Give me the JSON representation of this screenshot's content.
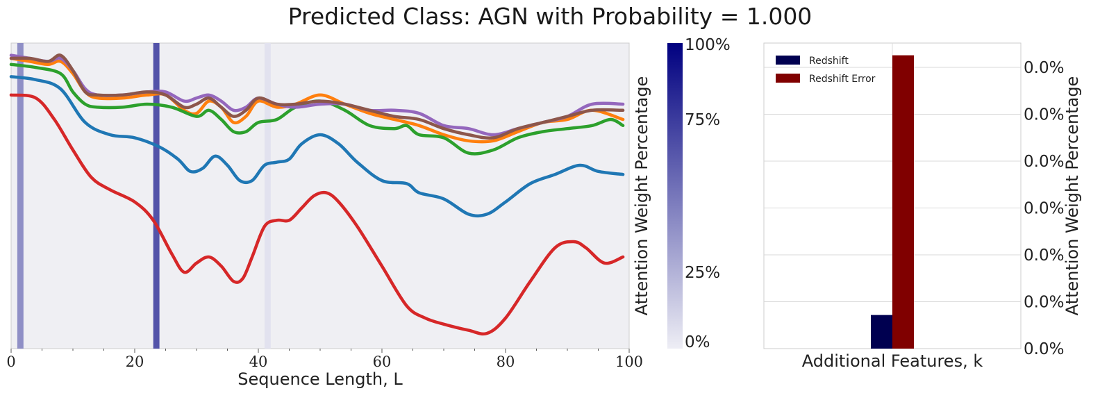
{
  "title": "Predicted Class: AGN with Probability = 1.000",
  "colorbar": {
    "label": "Attention Weight Percentage",
    "ticks": [
      "0%",
      "25%",
      "75%",
      "100%"
    ],
    "values": [
      0,
      25,
      75,
      100
    ],
    "colors": [
      "#eeeef5",
      "#000080"
    ]
  },
  "chart_data": [
    {
      "type": "line",
      "xlabel": "Sequence Length, L",
      "xlim": [
        0,
        100
      ],
      "x_ticks": [
        0,
        20,
        40,
        60,
        80,
        100
      ],
      "ylim": [
        0,
        1
      ],
      "background": "#efeff3",
      "attention_bands": [
        {
          "x": 1.5,
          "weight": 0.4
        },
        {
          "x": 23.5,
          "weight": 0.65
        },
        {
          "x": 41.5,
          "weight": 0.05
        }
      ],
      "series": [
        {
          "color": "#1f77b4",
          "x": [
            0,
            4,
            8,
            12,
            16,
            20,
            24,
            27,
            29,
            31,
            33,
            35,
            37,
            39,
            41,
            43,
            45,
            47,
            50,
            53,
            56,
            60,
            64,
            66,
            70,
            74,
            77,
            80,
            84,
            88,
            92,
            95,
            99
          ],
          "y": [
            0.89,
            0.88,
            0.85,
            0.74,
            0.7,
            0.69,
            0.66,
            0.62,
            0.58,
            0.59,
            0.63,
            0.6,
            0.55,
            0.55,
            0.6,
            0.61,
            0.62,
            0.67,
            0.7,
            0.67,
            0.61,
            0.55,
            0.54,
            0.51,
            0.49,
            0.44,
            0.44,
            0.48,
            0.54,
            0.57,
            0.6,
            0.58,
            0.57
          ]
        },
        {
          "color": "#ff7f0e",
          "x": [
            0,
            3,
            6,
            8,
            10,
            12,
            14,
            18,
            22,
            25,
            28,
            30,
            32,
            34,
            36,
            38,
            40,
            43,
            46,
            50,
            54,
            58,
            62,
            66,
            70,
            74,
            78,
            82,
            86,
            90,
            94,
            99
          ],
          "y": [
            0.95,
            0.94,
            0.93,
            0.94,
            0.9,
            0.84,
            0.82,
            0.82,
            0.83,
            0.83,
            0.78,
            0.77,
            0.81,
            0.79,
            0.74,
            0.76,
            0.81,
            0.79,
            0.8,
            0.83,
            0.8,
            0.77,
            0.75,
            0.73,
            0.7,
            0.68,
            0.68,
            0.71,
            0.74,
            0.75,
            0.78,
            0.75
          ]
        },
        {
          "color": "#2ca02c",
          "x": [
            0,
            4,
            8,
            10,
            12,
            14,
            18,
            22,
            26,
            30,
            32,
            34,
            36,
            38,
            40,
            43,
            46,
            50,
            54,
            58,
            62,
            64,
            66,
            70,
            74,
            78,
            82,
            86,
            90,
            94,
            97,
            99
          ],
          "y": [
            0.93,
            0.92,
            0.9,
            0.84,
            0.8,
            0.79,
            0.79,
            0.8,
            0.79,
            0.76,
            0.78,
            0.75,
            0.71,
            0.71,
            0.74,
            0.75,
            0.79,
            0.81,
            0.78,
            0.73,
            0.72,
            0.73,
            0.7,
            0.69,
            0.64,
            0.65,
            0.69,
            0.71,
            0.72,
            0.73,
            0.75,
            0.73
          ]
        },
        {
          "color": "#d62728",
          "x": [
            0,
            4,
            7,
            10,
            13,
            16,
            20,
            23,
            26,
            28,
            30,
            32,
            34,
            36,
            37.5,
            39,
            41,
            43,
            45,
            47,
            49,
            51,
            53,
            56,
            60,
            64,
            67,
            70,
            74,
            77,
            80,
            84,
            88,
            91,
            93,
            96,
            99
          ],
          "y": [
            0.83,
            0.82,
            0.75,
            0.65,
            0.56,
            0.52,
            0.48,
            0.42,
            0.31,
            0.25,
            0.28,
            0.3,
            0.27,
            0.22,
            0.23,
            0.3,
            0.4,
            0.42,
            0.42,
            0.46,
            0.5,
            0.51,
            0.48,
            0.4,
            0.27,
            0.14,
            0.1,
            0.08,
            0.06,
            0.05,
            0.1,
            0.22,
            0.33,
            0.35,
            0.33,
            0.28,
            0.3
          ]
        },
        {
          "color": "#9467bd",
          "x": [
            0,
            3,
            6,
            8,
            10,
            12,
            14,
            18,
            22,
            25,
            28,
            30,
            32,
            34,
            36,
            38,
            40,
            43,
            46,
            50,
            54,
            58,
            62,
            66,
            70,
            74,
            78,
            82,
            86,
            90,
            94,
            99
          ],
          "y": [
            0.96,
            0.95,
            0.94,
            0.95,
            0.91,
            0.85,
            0.83,
            0.83,
            0.84,
            0.84,
            0.81,
            0.82,
            0.83,
            0.81,
            0.78,
            0.79,
            0.82,
            0.8,
            0.79,
            0.8,
            0.8,
            0.78,
            0.78,
            0.77,
            0.73,
            0.72,
            0.7,
            0.72,
            0.74,
            0.76,
            0.8,
            0.8
          ]
        },
        {
          "color": "#8c564b",
          "x": [
            0,
            3,
            6,
            8,
            10,
            12,
            14,
            18,
            22,
            25,
            28,
            30,
            32,
            34,
            36,
            38,
            40,
            43,
            46,
            50,
            54,
            58,
            62,
            66,
            70,
            74,
            78,
            82,
            86,
            90,
            94,
            99
          ],
          "y": [
            0.95,
            0.95,
            0.94,
            0.96,
            0.91,
            0.84,
            0.83,
            0.83,
            0.84,
            0.83,
            0.79,
            0.8,
            0.82,
            0.79,
            0.76,
            0.78,
            0.82,
            0.8,
            0.8,
            0.81,
            0.8,
            0.78,
            0.76,
            0.75,
            0.72,
            0.7,
            0.69,
            0.72,
            0.74,
            0.76,
            0.78,
            0.78
          ]
        }
      ]
    },
    {
      "type": "bar",
      "xlabel": "Additional Features, k",
      "ylabel": "Attention Weight Percentage",
      "y_ticks": [
        "0.0%",
        "0.0%",
        "0.0%",
        "0.0%",
        "0.0%",
        "0.0%",
        "0.0%"
      ],
      "ylim": [
        0,
        1
      ],
      "series": [
        {
          "name": "Redshift",
          "value": 0.11,
          "color": "#000050"
        },
        {
          "name": "Redshift Error",
          "value": 0.96,
          "color": "#800000"
        }
      ]
    }
  ]
}
